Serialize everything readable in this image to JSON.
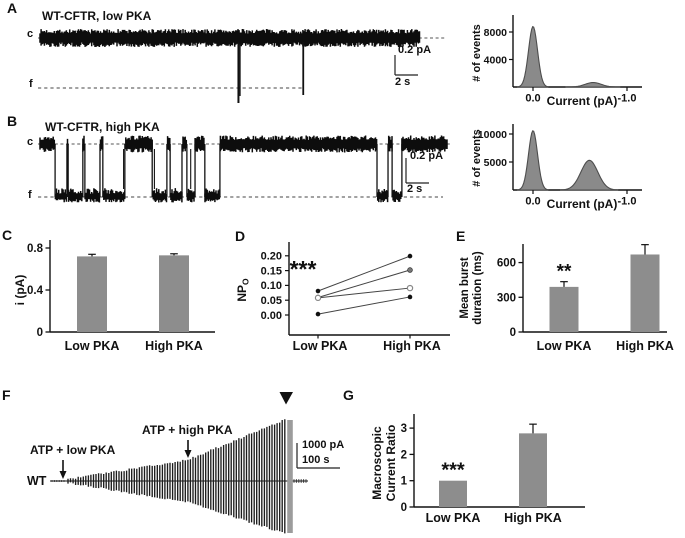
{
  "panel_letters": [
    "A",
    "B",
    "C",
    "D",
    "E",
    "F",
    "G"
  ],
  "colors": {
    "bar": "#8d8d8d",
    "hist_fill": "#8a8a8a",
    "hist_stroke": "#4d4d4d",
    "ink": "#111111"
  },
  "chart_data": [
    {
      "panel": "A",
      "type": "line",
      "subtype": "single-channel-trace",
      "title": "WT-CFTR, low PKA",
      "levels": {
        "closed": "c",
        "open": "f"
      },
      "openings_t": [
        0.49,
        0.65
      ],
      "scalebar": {
        "v": "0.2 pA",
        "t": "2 s"
      }
    },
    {
      "panel": "A",
      "type": "area",
      "subtype": "all-points-histogram",
      "ylabel": "# of events",
      "xlabel": "Current (pA)",
      "yticks": [
        {
          "v": 4000,
          "label": "4000"
        },
        {
          "v": 8000,
          "label": "8000"
        }
      ],
      "xticks": [
        {
          "v": 0,
          "label": "0.0"
        },
        {
          "v": -1,
          "label": "-1.0"
        }
      ],
      "peaks": [
        {
          "center_pA": 0.0,
          "height_events": 8800,
          "sigma_pA": 0.048
        },
        {
          "center_pA": -0.64,
          "height_events": 650,
          "sigma_pA": 0.085
        }
      ]
    },
    {
      "panel": "B",
      "type": "line",
      "subtype": "single-channel-trace",
      "title": "WT-CFTR, high PKA",
      "levels": {
        "closed": "c",
        "open": "f"
      },
      "open_segments": [
        [
          0.037,
          0.066
        ],
        [
          0.069,
          0.105
        ],
        [
          0.11,
          0.147
        ],
        [
          0.154,
          0.208
        ],
        [
          0.275,
          0.311
        ],
        [
          0.319,
          0.348
        ],
        [
          0.36,
          0.38
        ],
        [
          0.404,
          0.441
        ],
        [
          0.826,
          0.853
        ],
        [
          0.863,
          0.887
        ]
      ],
      "scalebar": {
        "v": "0.2 pA",
        "t": "2 s"
      }
    },
    {
      "panel": "B",
      "type": "area",
      "subtype": "all-points-histogram",
      "ylabel": "# of events",
      "xlabel": "Current (pA)",
      "yticks": [
        {
          "v": 5000,
          "label": "5000"
        },
        {
          "v": 10000,
          "label": "10000"
        }
      ],
      "xticks": [
        {
          "v": 0,
          "label": "0.0"
        },
        {
          "v": -1,
          "label": "-1.0"
        }
      ],
      "peaks": [
        {
          "center_pA": 0.0,
          "height_events": 10600,
          "sigma_pA": 0.048
        },
        {
          "center_pA": -0.6,
          "height_events": 5300,
          "sigma_pA": 0.09
        }
      ]
    },
    {
      "panel": "C",
      "type": "bar",
      "ylabel": "i (pA)",
      "categories": [
        "Low PKA",
        "High PKA"
      ],
      "values": [
        0.72,
        0.73
      ],
      "errors": [
        0.02,
        0.015
      ],
      "yticks": [
        {
          "v": 0,
          "label": "0"
        },
        {
          "v": 0.4,
          "label": "0.4"
        },
        {
          "v": 0.8,
          "label": "0.8"
        }
      ],
      "ylim": [
        0,
        0.8
      ]
    },
    {
      "panel": "D",
      "type": "line",
      "subtype": "paired-points",
      "ylabel_main": "NP",
      "ylabel_sub": "O",
      "categories": [
        "Low PKA",
        "High PKA"
      ],
      "series": [
        {
          "marker": "filled-circle",
          "values": [
            0.081,
            0.199
          ]
        },
        {
          "marker": "gray-circle",
          "values": [
            0.059,
            0.152
          ]
        },
        {
          "marker": "open-circle",
          "values": [
            0.058,
            0.091
          ]
        },
        {
          "marker": "filled-circle",
          "values": [
            0.003,
            0.061
          ]
        }
      ],
      "yticks": [
        {
          "v": 0,
          "label": "0.00"
        },
        {
          "v": 0.05,
          "label": "0.05"
        },
        {
          "v": 0.1,
          "label": "0.10"
        },
        {
          "v": 0.15,
          "label": "0.15"
        },
        {
          "v": 0.2,
          "label": "0.20"
        }
      ],
      "ylim": [
        0,
        0.22
      ],
      "significance": "***"
    },
    {
      "panel": "E",
      "type": "bar",
      "ylabel_lines": [
        "Mean burst",
        "duration (ms)"
      ],
      "categories": [
        "Low PKA",
        "High PKA"
      ],
      "values": [
        390,
        670
      ],
      "errors": [
        45,
        85
      ],
      "yticks": [
        {
          "v": 0,
          "label": "0"
        },
        {
          "v": 300,
          "label": "300"
        },
        {
          "v": 600,
          "label": "600"
        }
      ],
      "ylim": [
        0,
        760
      ],
      "significance": [
        "**",
        null
      ]
    },
    {
      "panel": "F",
      "type": "line",
      "subtype": "macroscopic-current-trace",
      "label": "WT",
      "annotations": [
        "ATP + low PKA",
        "ATP + high PKA"
      ],
      "envelope": {
        "t": [
          0,
          0.55,
          1
        ],
        "up": [
          0.015,
          0.33,
          1.0
        ],
        "down": [
          0.015,
          0.33,
          0.85
        ]
      },
      "scalebar": {
        "v": "1000 pA",
        "t": "100 s"
      }
    },
    {
      "panel": "G",
      "type": "bar",
      "ylabel_lines": [
        "Macroscopic",
        "Current Ratio"
      ],
      "categories": [
        "Low PKA",
        "High PKA"
      ],
      "values": [
        1.0,
        2.8
      ],
      "errors": [
        null,
        0.35
      ],
      "yticks": [
        {
          "v": 0,
          "label": "0"
        },
        {
          "v": 1,
          "label": "1"
        },
        {
          "v": 2,
          "label": "2"
        },
        {
          "v": 3,
          "label": "3"
        }
      ],
      "ylim": [
        0,
        3.4
      ],
      "significance": [
        "***",
        null
      ]
    }
  ]
}
